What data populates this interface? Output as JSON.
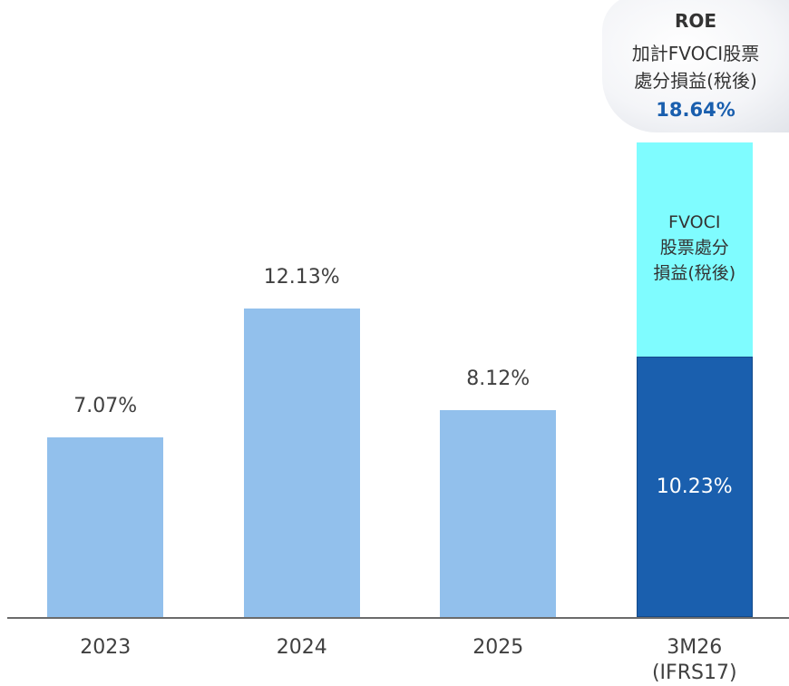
{
  "chart_data": {
    "type": "bar",
    "categories": [
      "2023",
      "2024",
      "2025",
      "3M26\n(IFRS17)"
    ],
    "series": [
      {
        "name": null,
        "color": "#92c0ec",
        "values": [
          7.07,
          12.13,
          8.12,
          10.23
        ],
        "value_labels": [
          "7.07%",
          "12.13%",
          "8.12%",
          "10.23%"
        ]
      },
      {
        "name": "FVOCI\n股票處分\n損益(稅後)",
        "color": "#7ffcff",
        "values": [
          null,
          null,
          null,
          8.41
        ]
      }
    ],
    "highlight_color": "#1a5fae",
    "ylim": [
      0,
      20
    ],
    "annotation": {
      "title": "ROE",
      "text": "加計FVOCI股票\n處分損益(稅後)",
      "value_label": "18.64%"
    }
  }
}
